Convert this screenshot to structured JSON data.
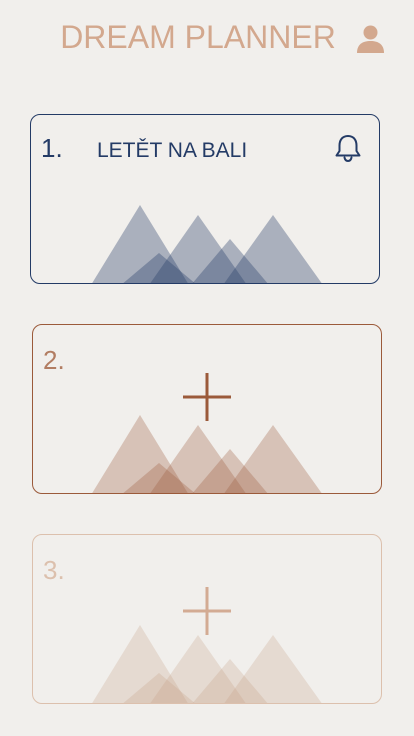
{
  "header": {
    "title": "DREAM PLANNER",
    "user_icon": "user-icon"
  },
  "colors": {
    "background": "#f1efec",
    "title": "#d3a88e",
    "navy": "#243b66",
    "rust": "#9b5a3a",
    "sand": "#dcc0ad"
  },
  "cards": [
    {
      "number": "1.",
      "title": "LETĚT NA BALI",
      "icon": "bell-icon",
      "state": "filled"
    },
    {
      "number": "2.",
      "icon": "plus-icon",
      "state": "empty-active"
    },
    {
      "number": "3.",
      "icon": "plus-icon",
      "state": "empty-inactive"
    }
  ]
}
